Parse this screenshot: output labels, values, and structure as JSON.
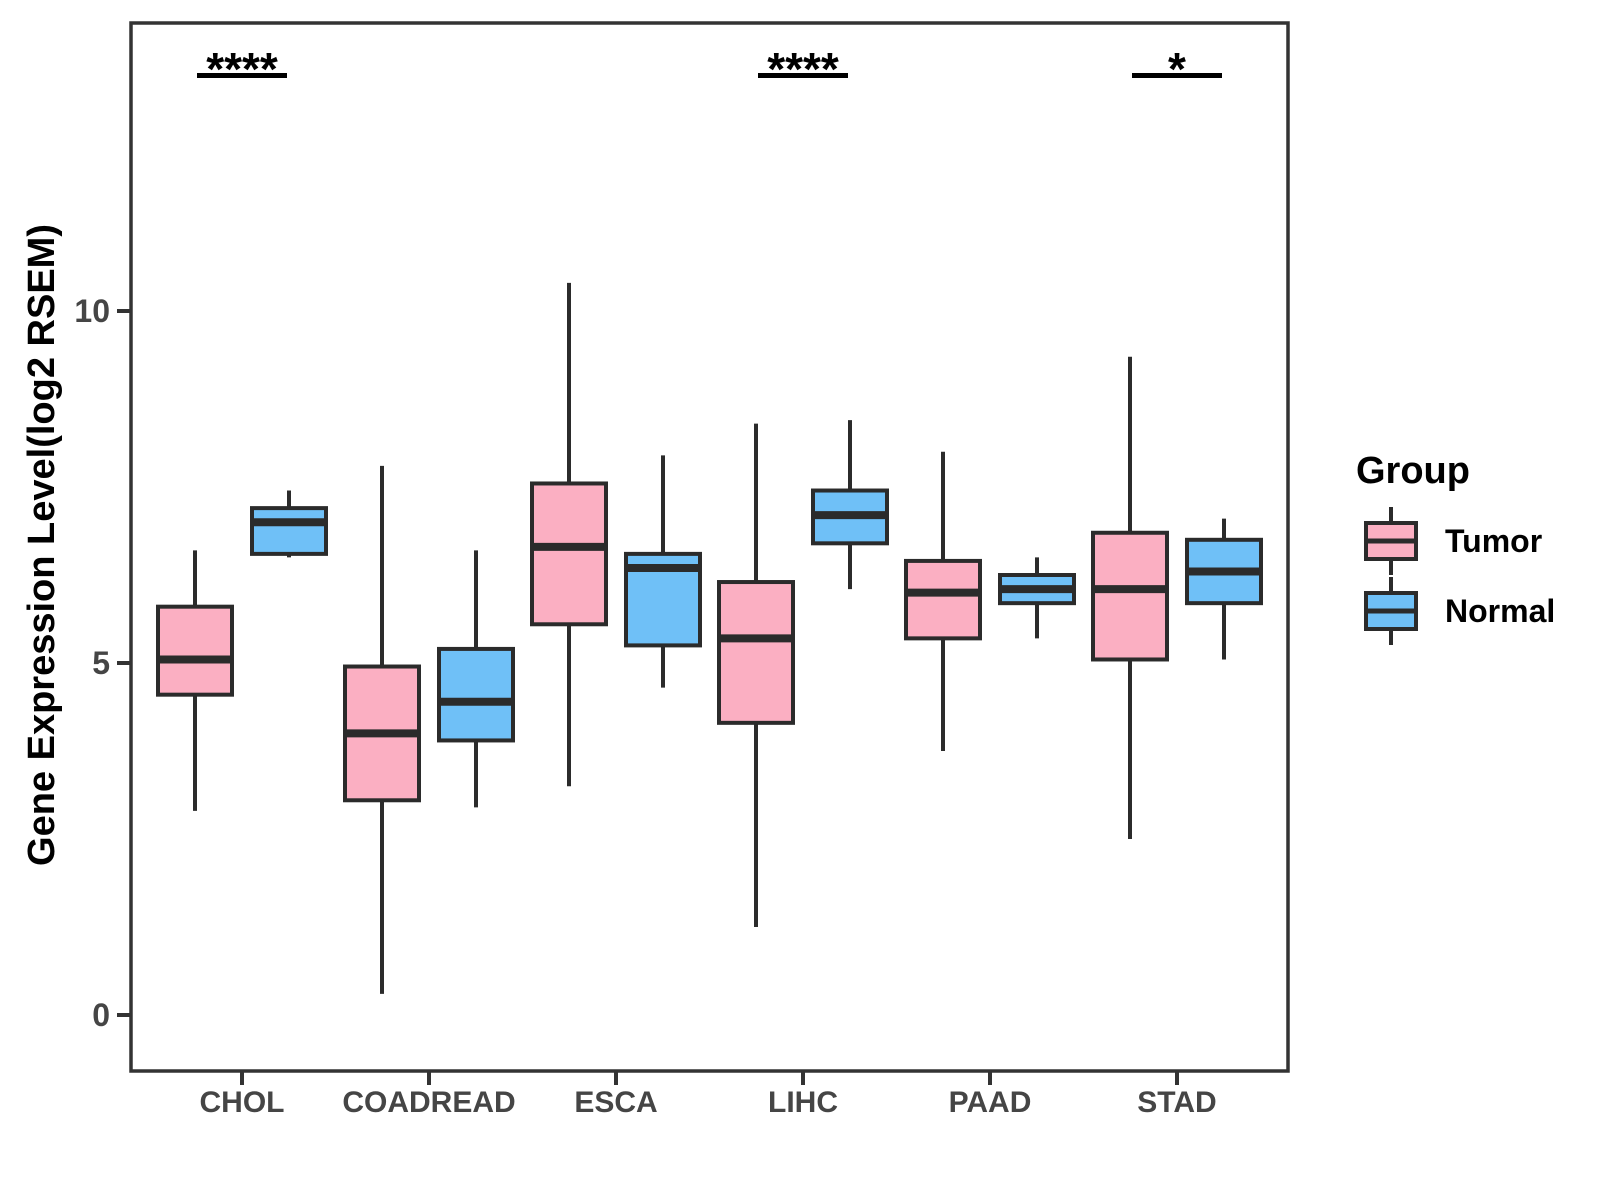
{
  "figure": {
    "background": "#ffffff"
  },
  "legend": {
    "title": "Group",
    "entries": [
      {
        "label": "Tumor",
        "color": "#FBAFC2"
      },
      {
        "label": "Normal",
        "color": "#6FC0F7"
      }
    ]
  },
  "chart_data": {
    "type": "boxplot",
    "title": "",
    "xlabel": "",
    "ylabel": "Gene Expression Level(log2 RSEM)",
    "categories": [
      "CHOL",
      "COADREAD",
      "ESCA",
      "LIHC",
      "PAAD",
      "STAD"
    ],
    "groups": [
      "Tumor",
      "Normal"
    ],
    "yticks": [
      0,
      5,
      10
    ],
    "ylim": [
      -0.8,
      14.2
    ],
    "grid": false,
    "legend_position": "right",
    "box_border_color": "#2b2b2b",
    "axis_color": "#333333",
    "series": [
      {
        "name": "Tumor",
        "color": "#FBAFC2",
        "boxes": [
          {
            "category": "CHOL",
            "min": 2.9,
            "q1": 4.55,
            "median": 5.05,
            "q3": 5.8,
            "max": 6.6
          },
          {
            "category": "COADREAD",
            "min": 0.3,
            "q1": 3.05,
            "median": 4.0,
            "q3": 4.95,
            "max": 7.8
          },
          {
            "category": "ESCA",
            "min": 3.25,
            "q1": 5.55,
            "median": 6.65,
            "q3": 7.55,
            "max": 10.4
          },
          {
            "category": "LIHC",
            "min": 1.25,
            "q1": 4.15,
            "median": 5.35,
            "q3": 6.15,
            "max": 8.4
          },
          {
            "category": "PAAD",
            "min": 3.75,
            "q1": 5.35,
            "median": 6.0,
            "q3": 6.45,
            "max": 8.0
          },
          {
            "category": "STAD",
            "min": 2.5,
            "q1": 5.05,
            "median": 6.05,
            "q3": 6.85,
            "max": 9.35
          }
        ]
      },
      {
        "name": "Normal",
        "color": "#6FC0F7",
        "boxes": [
          {
            "category": "CHOL",
            "min": 6.5,
            "q1": 6.55,
            "median": 7.0,
            "q3": 7.2,
            "max": 7.45
          },
          {
            "category": "COADREAD",
            "min": 2.95,
            "q1": 3.9,
            "median": 4.45,
            "q3": 5.2,
            "max": 6.6
          },
          {
            "category": "ESCA",
            "min": 4.65,
            "q1": 5.25,
            "median": 6.35,
            "q3": 6.55,
            "max": 7.95
          },
          {
            "category": "LIHC",
            "min": 6.05,
            "q1": 6.7,
            "median": 7.1,
            "q3": 7.45,
            "max": 8.45
          },
          {
            "category": "PAAD",
            "min": 5.35,
            "q1": 5.85,
            "median": 6.05,
            "q3": 6.25,
            "max": 6.5
          },
          {
            "category": "STAD",
            "min": 5.05,
            "q1": 5.85,
            "median": 6.3,
            "q3": 6.75,
            "max": 7.05
          }
        ]
      }
    ],
    "significance": [
      {
        "category": "CHOL",
        "label": "****"
      },
      {
        "category": "LIHC",
        "label": "****"
      },
      {
        "category": "STAD",
        "label": "*"
      }
    ]
  }
}
